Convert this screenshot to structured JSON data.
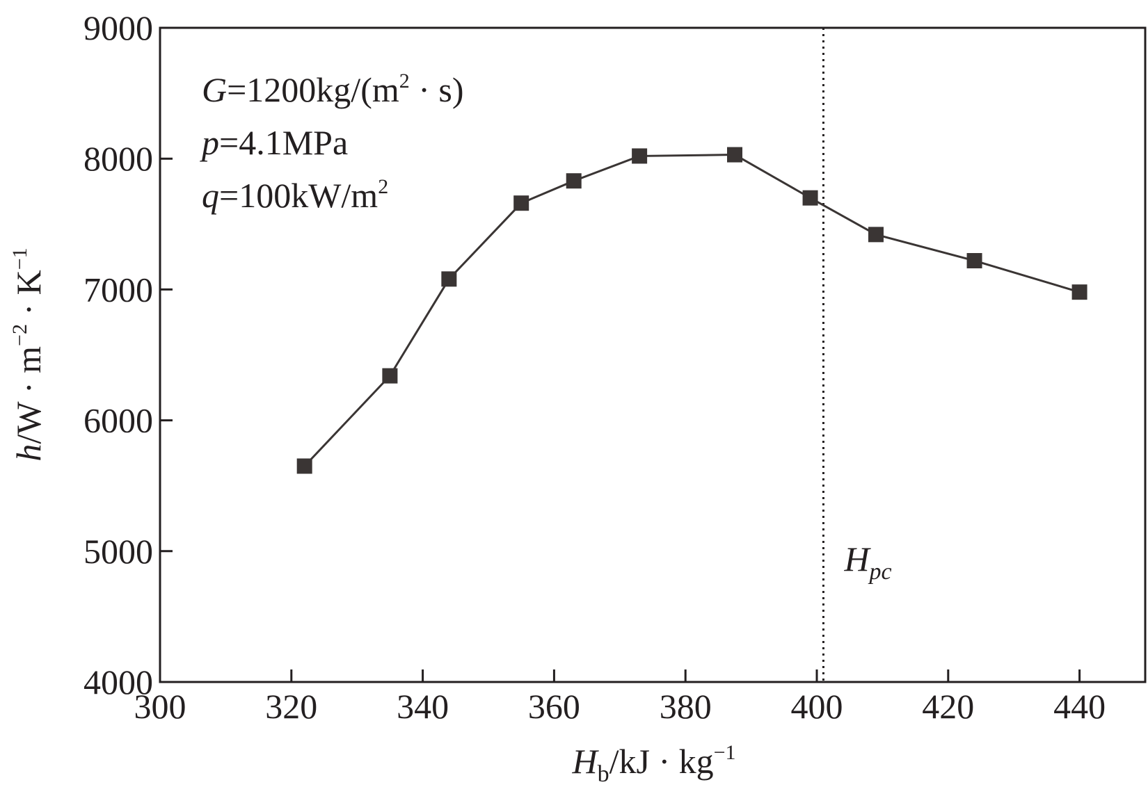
{
  "chart_data": {
    "type": "line",
    "x": [
      322,
      335,
      344,
      355,
      363,
      373,
      387.5,
      399,
      409,
      424,
      440
    ],
    "series": [
      {
        "name": "h",
        "values": [
          5650,
          6340,
          7080,
          7660,
          7830,
          8020,
          8030,
          7700,
          7420,
          7220,
          6980
        ],
        "color": "#3a3534",
        "marker": "square"
      }
    ],
    "xlim": [
      300,
      450
    ],
    "ylim": [
      4000,
      9000
    ],
    "x_ticks": [
      "300",
      "320",
      "340",
      "360",
      "380",
      "400",
      "420",
      "440"
    ],
    "y_ticks": [
      "4000",
      "5000",
      "6000",
      "7000",
      "8000",
      "9000"
    ],
    "xlabel": {
      "symbol": "H",
      "subscript": "b",
      "unit": "/kJ · kg",
      "exponent": "−1"
    },
    "ylabel": {
      "symbol": "h",
      "unit_1": "/W · m",
      "exp_1": "−2",
      "unit_2": " · K",
      "exp_2": "−1"
    },
    "reference_line": {
      "x": 401,
      "style": "dotted",
      "label_symbol": "H",
      "label_subscript": "pc"
    },
    "annotations": [
      {
        "symbol": "G",
        "text": "=1200kg/(m",
        "superscript": "2",
        "after": " · s)"
      },
      {
        "symbol": "p",
        "text": "=4.1MPa",
        "superscript": "",
        "after": ""
      },
      {
        "symbol": "q",
        "text": "=100kW/m",
        "superscript": "2",
        "after": ""
      }
    ],
    "grid": false,
    "legend": "none"
  }
}
